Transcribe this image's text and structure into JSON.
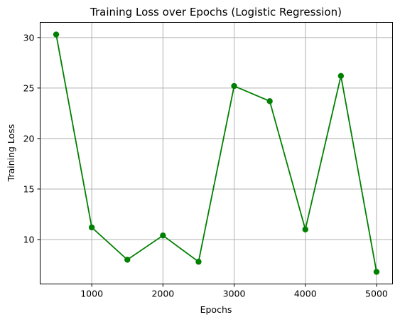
{
  "chart_data": {
    "type": "line",
    "title": "Training Loss over Epochs (Logistic Regression)",
    "xlabel": "Epochs",
    "ylabel": "Training Loss",
    "x": [
      500,
      1000,
      1500,
      2000,
      2500,
      3000,
      3500,
      4000,
      4500,
      5000
    ],
    "series": [
      {
        "values": [
          30.3,
          11.2,
          8.0,
          10.4,
          7.8,
          25.2,
          23.7,
          11.0,
          26.2,
          6.8
        ],
        "color": "#008000",
        "marker": "circle"
      }
    ],
    "xlim": [
      275,
      5225
    ],
    "ylim": [
      5.6,
      31.5
    ],
    "xticks": [
      1000,
      2000,
      3000,
      4000,
      5000
    ],
    "yticks": [
      10,
      15,
      20,
      25,
      30
    ],
    "grid": true
  }
}
